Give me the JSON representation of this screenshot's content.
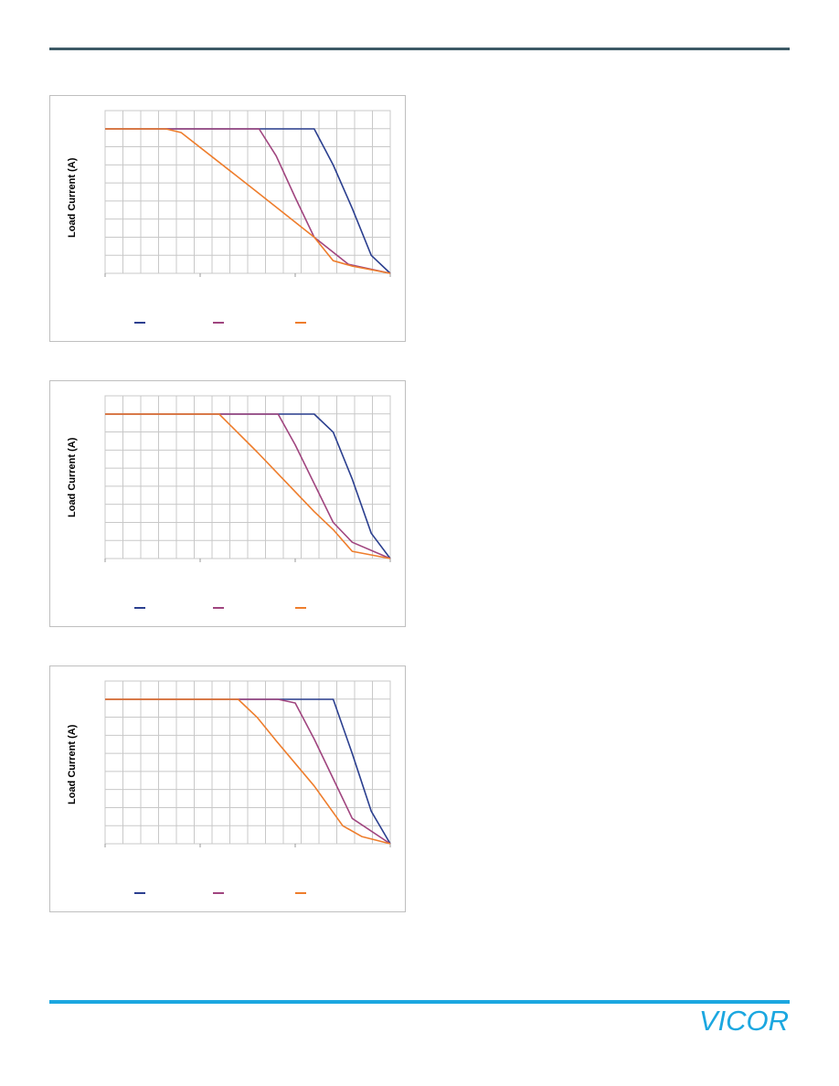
{
  "colors": {
    "header_rule": "#3d5a66",
    "footer_rule": "#1ba7e0",
    "series_blue": "#2b3f8f",
    "series_purple": "#a0457f",
    "series_orange": "#ee7d2c",
    "grid": "#c8c8c8",
    "logo": "#1ba7e0"
  },
  "brand": {
    "logo_text": "VICOR"
  },
  "chart_data": [
    {
      "type": "line",
      "ylabel": "Load Current (A)",
      "grid": true,
      "legend_position": "bottom",
      "x_gridlines": 16,
      "y_gridlines": 9,
      "series": [
        {
          "color": "#2b3f8f",
          "points": [
            [
              0,
              8
            ],
            [
              11,
              8
            ],
            [
              12,
              6
            ],
            [
              13,
              3.6
            ],
            [
              14,
              1
            ],
            [
              15,
              0
            ]
          ]
        },
        {
          "color": "#a0457f",
          "points": [
            [
              0,
              8
            ],
            [
              8.1,
              8
            ],
            [
              9,
              6.5
            ],
            [
              10,
              4.2
            ],
            [
              11,
              2
            ],
            [
              12.8,
              0.5
            ],
            [
              15,
              0
            ]
          ]
        },
        {
          "color": "#ee7d2c",
          "points": [
            [
              0,
              8
            ],
            [
              3.2,
              8
            ],
            [
              4,
              7.8
            ],
            [
              8,
              4.5
            ],
            [
              11,
              2
            ],
            [
              12,
              0.7
            ],
            [
              13,
              0.4
            ],
            [
              15,
              0
            ]
          ]
        }
      ]
    },
    {
      "type": "line",
      "ylabel": "Load Current (A)",
      "grid": true,
      "legend_position": "bottom",
      "x_gridlines": 16,
      "y_gridlines": 9,
      "series": [
        {
          "color": "#2b3f8f",
          "points": [
            [
              0,
              8
            ],
            [
              11,
              8
            ],
            [
              12,
              7
            ],
            [
              13,
              4.4
            ],
            [
              14,
              1.4
            ],
            [
              15,
              0
            ]
          ]
        },
        {
          "color": "#a0457f",
          "points": [
            [
              0,
              8
            ],
            [
              9.1,
              8
            ],
            [
              10,
              6.3
            ],
            [
              12,
              2
            ],
            [
              13,
              0.9
            ],
            [
              15,
              0
            ]
          ]
        },
        {
          "color": "#ee7d2c",
          "points": [
            [
              0,
              8
            ],
            [
              6,
              8
            ],
            [
              8,
              5.9
            ],
            [
              10,
              3.7
            ],
            [
              11,
              2.6
            ],
            [
              12,
              1.6
            ],
            [
              13,
              0.4
            ],
            [
              15,
              0
            ]
          ]
        }
      ]
    },
    {
      "type": "line",
      "ylabel": "Load Current (A)",
      "grid": true,
      "legend_position": "bottom",
      "x_gridlines": 16,
      "y_gridlines": 9,
      "series": [
        {
          "color": "#2b3f8f",
          "points": [
            [
              0,
              8
            ],
            [
              12,
              8
            ],
            [
              13,
              5
            ],
            [
              14,
              1.8
            ],
            [
              15,
              0
            ]
          ]
        },
        {
          "color": "#a0457f",
          "points": [
            [
              0,
              8
            ],
            [
              9.1,
              8
            ],
            [
              10,
              7.8
            ],
            [
              11,
              5.8
            ],
            [
              12,
              3.6
            ],
            [
              13,
              1.4
            ],
            [
              15,
              0
            ]
          ]
        },
        {
          "color": "#ee7d2c",
          "points": [
            [
              0,
              8
            ],
            [
              7,
              8
            ],
            [
              8,
              7
            ],
            [
              9,
              5.7
            ],
            [
              11,
              3.2
            ],
            [
              12.5,
              1
            ],
            [
              13.5,
              0.4
            ],
            [
              15,
              0
            ]
          ]
        }
      ]
    }
  ]
}
